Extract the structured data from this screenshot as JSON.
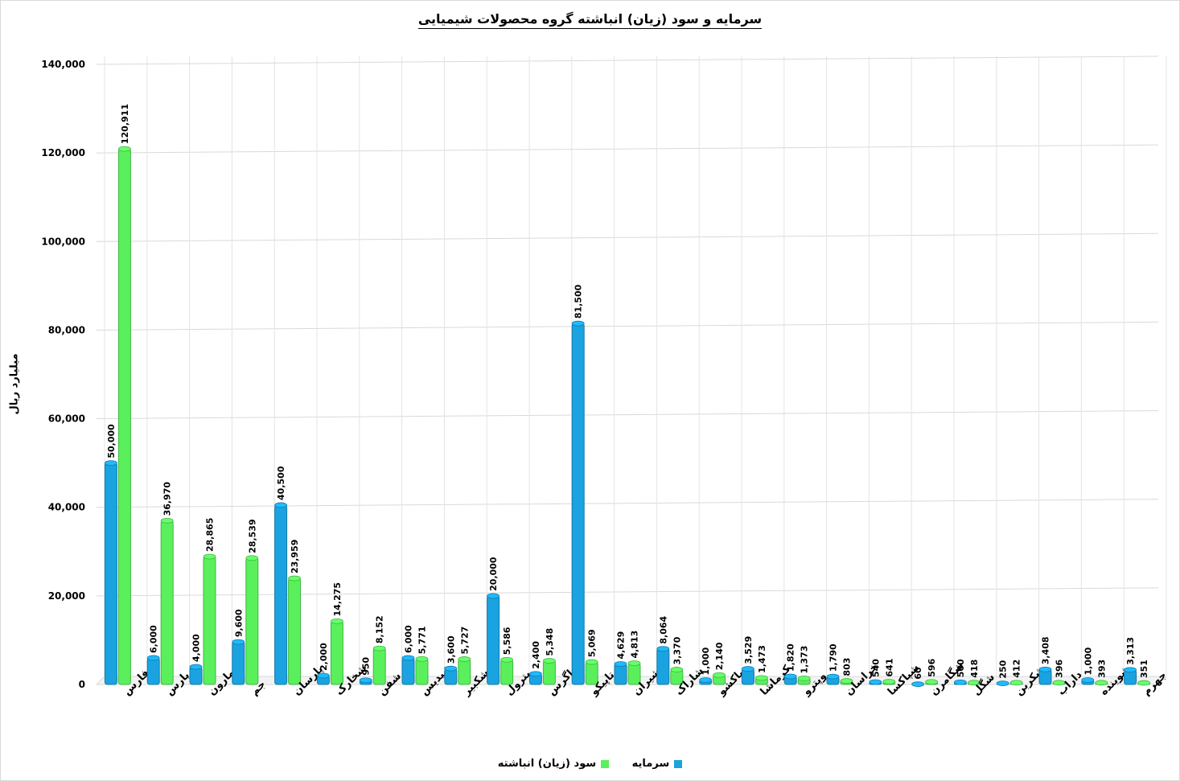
{
  "chart_data": {
    "type": "bar",
    "title": "سرمایه و سود (زیان) انباشته گروه محصولات شیمیایی",
    "ylabel": "میلیارد ریال",
    "ylim": [
      0,
      140000
    ],
    "yticks": [
      "0",
      "20,000",
      "40,000",
      "60,000",
      "80,000",
      "100,000",
      "120,000",
      "140,000"
    ],
    "ytick_values": [
      0,
      20000,
      40000,
      60000,
      80000,
      100000,
      120000,
      140000
    ],
    "grid": true,
    "legend_position": "bottom",
    "categories": [
      "فارس",
      "پارس",
      "مارون",
      "جم",
      "پارسان",
      "شخارک",
      "شفن",
      "شپدیس",
      "شکبیر",
      "پترول",
      "زاگرس",
      "تاپیکو",
      "شیران",
      "شاراک",
      "پاکشو",
      "کرماشا",
      "وپترو",
      "خراسان",
      "شپاکسا",
      "شگامرن",
      "شگل",
      "شکربن",
      "داراب",
      "شوینده",
      "جهرم"
    ],
    "series": [
      {
        "name": "سرمایه",
        "color": "#1aa3e0",
        "values": [
          50000,
          6000,
          4000,
          9600,
          40500,
          2000,
          950,
          6000,
          3600,
          20000,
          2400,
          81500,
          4629,
          8064,
          1000,
          3529,
          1820,
          1790,
          540,
          60,
          500,
          250,
          3408,
          1000,
          3313
        ],
        "labels": [
          "50,000",
          "6,000",
          "4,000",
          "9,600",
          "40,500",
          "2,000",
          "950",
          "6,000",
          "3,600",
          "20,000",
          "2,400",
          "81,500",
          "4,629",
          "8,064",
          "1,000",
          "3,529",
          "1,820",
          "1,790",
          "540",
          "60",
          "500",
          "250",
          "3,408",
          "1,000",
          "3,313"
        ]
      },
      {
        "name": "سود (زیان) انباشته",
        "color": "#59f05c",
        "values": [
          120911,
          36970,
          28865,
          28539,
          23959,
          14275,
          8152,
          5771,
          5727,
          5586,
          5348,
          5069,
          4813,
          3370,
          2140,
          1473,
          1373,
          803,
          641,
          596,
          418,
          412,
          396,
          393,
          351
        ],
        "labels": [
          "120,911",
          "36,970",
          "28,865",
          "28,539",
          "23,959",
          "14,275",
          "8,152",
          "5,771",
          "5,727",
          "5,586",
          "5,348",
          "5,069",
          "4,813",
          "3,370",
          "2,140",
          "1,473",
          "1,373",
          "803",
          "641",
          "596",
          "418",
          "412",
          "396",
          "393",
          "351"
        ]
      }
    ]
  }
}
